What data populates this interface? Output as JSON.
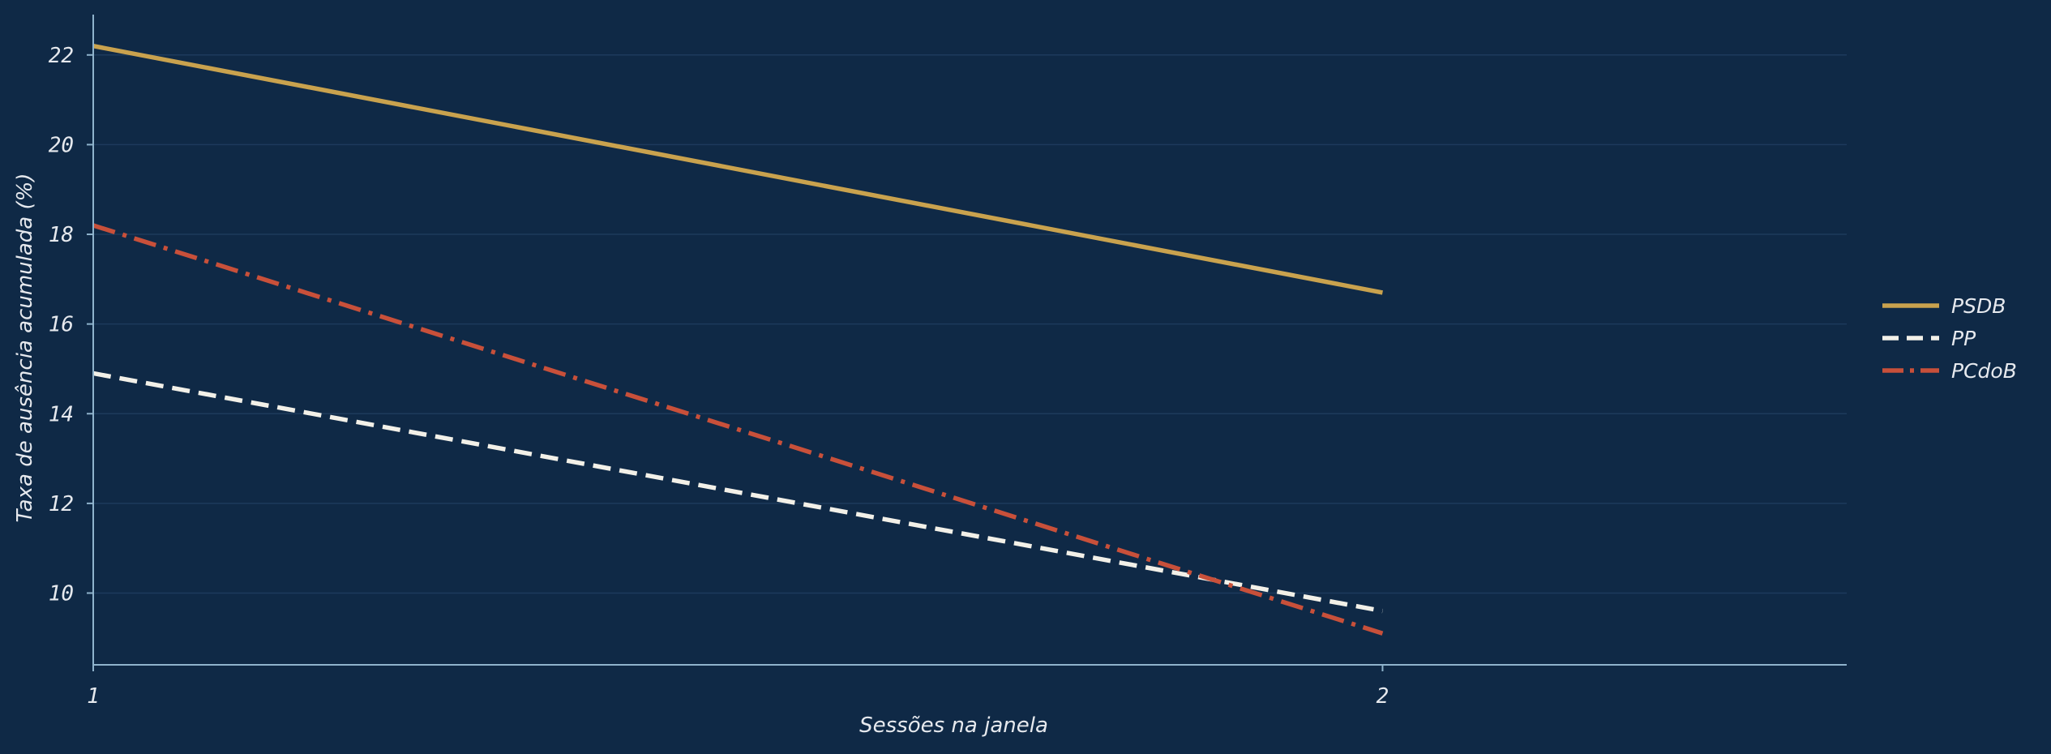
{
  "colors": {
    "background": "#0f2946",
    "grid": "#1d3a5c",
    "axis": "#8fb3cc",
    "text": "#e6e9ee"
  },
  "chart_data": {
    "type": "line",
    "title": "",
    "xlabel": "Sessões na janela",
    "ylabel": "Taxa de ausência acumulada (%)",
    "x": [
      1,
      2
    ],
    "xticks": [
      "1",
      "2"
    ],
    "xlim": [
      1,
      2.36
    ],
    "ylim": [
      8.4,
      22.9
    ],
    "yticks": [
      10,
      12,
      14,
      16,
      18,
      20,
      22
    ],
    "grid": "horizontal",
    "legend_position": "right",
    "series": [
      {
        "name": "PSDB",
        "values": [
          22.2,
          16.7
        ],
        "color": "#c9a24e",
        "style": "solid"
      },
      {
        "name": "PP",
        "values": [
          14.9,
          9.6
        ],
        "color": "#f2f0e8",
        "style": "dashed"
      },
      {
        "name": "PCdoB",
        "values": [
          18.2,
          9.1
        ],
        "color": "#c8503a",
        "style": "dashdot"
      }
    ]
  }
}
